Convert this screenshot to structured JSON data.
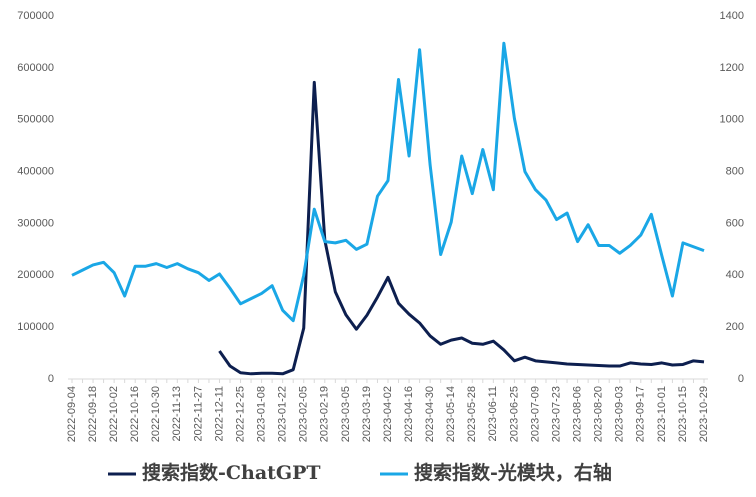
{
  "chart_data": {
    "type": "line",
    "categories": [
      "2022-09-04",
      null,
      "2022-09-18",
      null,
      "2022-10-02",
      null,
      "2022-10-16",
      null,
      "2022-10-30",
      null,
      "2022-11-13",
      null,
      "2022-11-27",
      null,
      "2022-12-11",
      null,
      "2022-12-25",
      null,
      "2023-01-08",
      null,
      "2023-01-22",
      null,
      "2023-02-05",
      null,
      "2023-02-19",
      null,
      "2023-03-05",
      null,
      "2023-03-19",
      null,
      "2023-04-02",
      null,
      "2023-04-16",
      null,
      "2023-04-30",
      null,
      "2023-05-14",
      null,
      "2023-05-28",
      null,
      "2023-06-11",
      null,
      "2023-06-25",
      null,
      "2023-07-09",
      null,
      "2023-07-23",
      null,
      "2023-08-06",
      null,
      "2023-08-20",
      null,
      "2023-09-03",
      null,
      "2023-09-17",
      null,
      "2023-10-01",
      null,
      "2023-10-15",
      null,
      "2023-10-29"
    ],
    "series": [
      {
        "name": "搜索指数-ChatGPT",
        "color": "#0d1f4f",
        "axis": "y",
        "values": [
          null,
          null,
          null,
          null,
          null,
          null,
          null,
          null,
          null,
          null,
          null,
          null,
          null,
          null,
          54000,
          25000,
          12000,
          10000,
          11000,
          11000,
          10000,
          18000,
          98000,
          572000,
          268000,
          168000,
          124000,
          96000,
          123000,
          158000,
          196000,
          146000,
          125000,
          108000,
          83000,
          67000,
          75000,
          79000,
          69000,
          67000,
          73000,
          56000,
          35000,
          42000,
          35000,
          33000,
          31000,
          29000,
          28000,
          27000,
          26000,
          25000,
          25000,
          31000,
          29000,
          28000,
          31000,
          27000,
          28000,
          35000,
          33000
        ]
      },
      {
        "name": "搜索指数-光模块，右轴",
        "color": "#1aa7e6",
        "axis": "y2",
        "values": [
          400,
          420,
          440,
          450,
          410,
          320,
          435,
          435,
          445,
          430,
          445,
          425,
          410,
          380,
          405,
          350,
          290,
          310,
          330,
          360,
          265,
          225,
          400,
          655,
          530,
          525,
          535,
          500,
          520,
          705,
          765,
          1155,
          860,
          1270,
          825,
          480,
          605,
          860,
          715,
          885,
          730,
          1295,
          1005,
          800,
          730,
          690,
          615,
          640,
          530,
          595,
          515,
          515,
          485,
          515,
          555,
          635,
          475,
          320,
          525,
          510,
          495
        ]
      }
    ],
    "ylim": [
      0,
      700000
    ],
    "yticks": [
      0,
      100000,
      200000,
      300000,
      400000,
      500000,
      600000,
      700000
    ],
    "y2lim": [
      0,
      1400
    ],
    "y2ticks": [
      0,
      200,
      400,
      600,
      800,
      1000,
      1200,
      1400
    ],
    "grid": false,
    "legend": "bottom"
  }
}
